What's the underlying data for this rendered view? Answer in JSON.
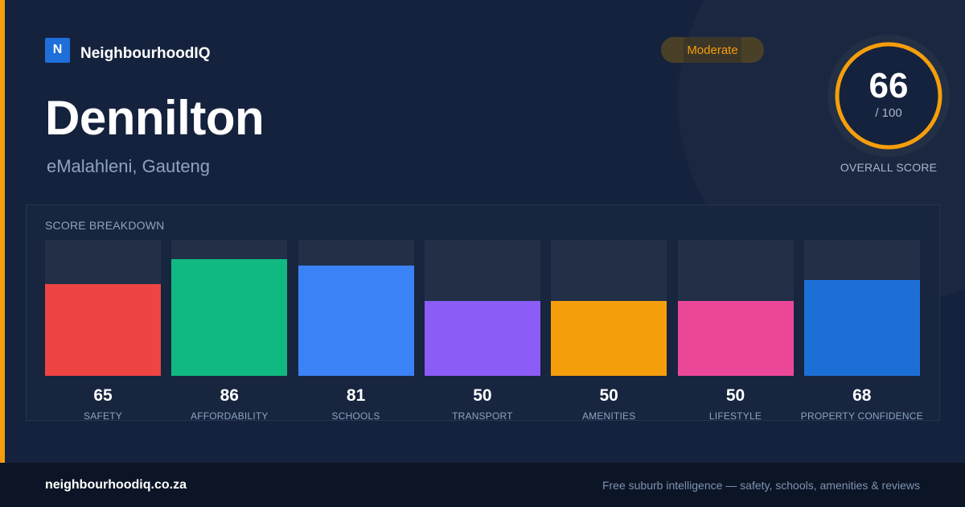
{
  "brand": {
    "logo_letter": "N",
    "name": "NeighbourhoodIQ"
  },
  "suburb": {
    "name": "Dennilton",
    "location": "eMalahleni, Gauteng"
  },
  "rating": {
    "label": "Moderate"
  },
  "overall": {
    "score": "66",
    "max": "/ 100",
    "label": "OVERALL SCORE",
    "ring_color": "#f59e0b"
  },
  "breakdown": {
    "title": "SCORE BREAKDOWN",
    "metrics": [
      {
        "label": "SAFETY",
        "value": 65,
        "color": "#ef4444"
      },
      {
        "label": "AFFORDABILITY",
        "value": 86,
        "color": "#10b981"
      },
      {
        "label": "SCHOOLS",
        "value": 81,
        "color": "#3b82f6"
      },
      {
        "label": "TRANSPORT",
        "value": 50,
        "color": "#8b5cf6"
      },
      {
        "label": "AMENITIES",
        "value": 50,
        "color": "#f59e0b"
      },
      {
        "label": "LIFESTYLE",
        "value": 50,
        "color": "#ec4899"
      },
      {
        "label": "PROPERTY CONFIDENCE",
        "value": 68,
        "color": "#1d6fd8"
      }
    ]
  },
  "footer": {
    "url": "neighbourhoodiq.co.za",
    "tagline": "Free suburb intelligence — safety, schools, amenities & reviews"
  }
}
